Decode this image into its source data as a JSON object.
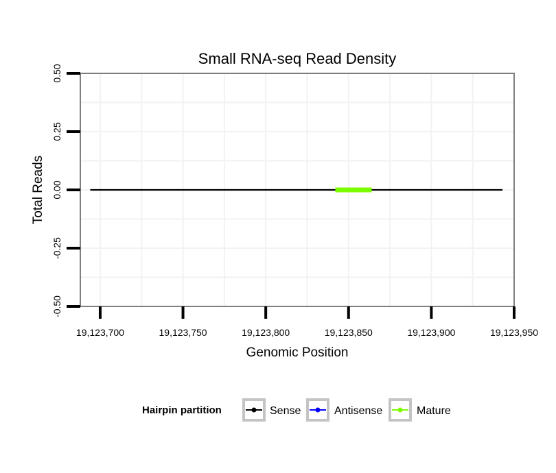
{
  "chart_data": {
    "type": "line",
    "title": "Small RNA-seq Read Density",
    "xlabel": "Genomic Position",
    "ylabel": "Total Reads",
    "xlim": [
      19123688,
      19123950
    ],
    "ylim": [
      -0.5,
      0.5
    ],
    "x_ticks": [
      19123700,
      19123750,
      19123800,
      19123850,
      19123900,
      19123950
    ],
    "x_tick_labels": [
      "19,123,700",
      "19,123,750",
      "19,123,800",
      "19,123,850",
      "19,123,900",
      "19,123,950"
    ],
    "y_ticks": [
      -0.5,
      -0.25,
      0,
      0.25,
      0.5
    ],
    "y_tick_labels": [
      "-0.50",
      "-0.25",
      "0.00",
      "0.25",
      "0.50"
    ],
    "grid": true,
    "series": [
      {
        "name": "Sense",
        "color": "#000000",
        "x": [
          19123694,
          19123943
        ],
        "y": [
          0,
          0
        ]
      },
      {
        "name": "Antisense",
        "color": "#0000ff",
        "x": [],
        "y": []
      },
      {
        "name": "Mature",
        "color": "#7cfc00",
        "x": [
          19123842,
          19123864
        ],
        "y": [
          0,
          0
        ]
      }
    ],
    "legend": {
      "title": "Hairpin partition",
      "position": "bottom",
      "entries": [
        "Sense",
        "Antisense",
        "Mature"
      ]
    }
  }
}
